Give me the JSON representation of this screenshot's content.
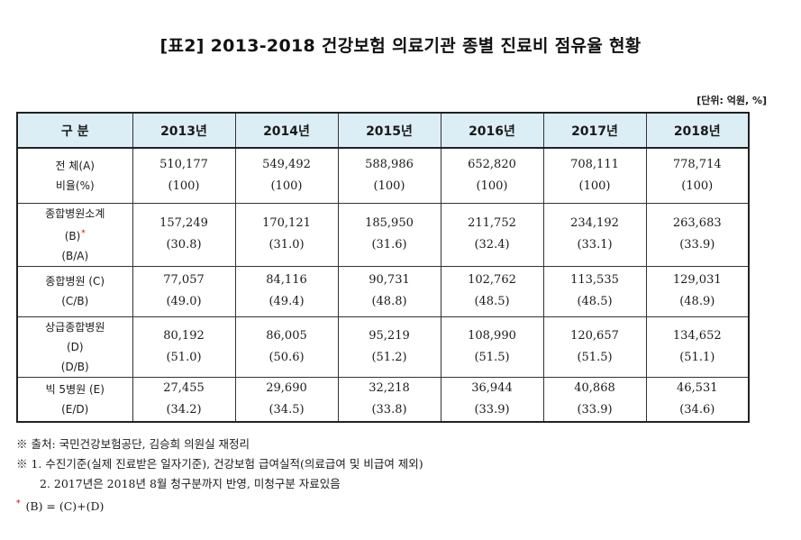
{
  "title": "[표2] 2013-2018 건강보험 의료기관 종별 진료비 점유율 현황",
  "unit": "[단위: 억원, %]",
  "chart_data": {
    "type": "table",
    "title": "[표2] 2013-2018 건강보험 의료기관 종별 진료비 점유율 현황",
    "unit": "[단위: 억원, %]",
    "header": [
      "구 분",
      "2013년",
      "2014년",
      "2015년",
      "2016년",
      "2017년",
      "2018년"
    ],
    "rows": [
      {
        "label_lines": [
          "전 체(A)",
          "비율(%)"
        ],
        "label_mark": "",
        "values": [
          "510,177",
          "549,492",
          "588,986",
          "652,820",
          "708,111",
          "778,714"
        ],
        "ratios": [
          "(100)",
          "(100)",
          "(100)",
          "(100)",
          "(100)",
          "(100)"
        ]
      },
      {
        "label_lines": [
          "종합병원소계",
          "(B)",
          "(B/A)"
        ],
        "label_mark": "*",
        "values": [
          "157,249",
          "170,121",
          "185,950",
          "211,752",
          "234,192",
          "263,683"
        ],
        "ratios": [
          "(30.8)",
          "(31.0)",
          "(31.6)",
          "(32.4)",
          "(33.1)",
          "(33.9)"
        ]
      },
      {
        "label_lines": [
          "종합병원 (C)",
          "(C/B)"
        ],
        "label_mark": "",
        "values": [
          "77,057",
          "84,116",
          "90,731",
          "102,762",
          "113,535",
          "129,031"
        ],
        "ratios": [
          "(49.0)",
          "(49.4)",
          "(48.8)",
          "(48.5)",
          "(48.5)",
          "(48.9)"
        ]
      },
      {
        "label_lines": [
          "상급종합병원",
          "(D)",
          "(D/B)"
        ],
        "label_mark": "",
        "values": [
          "80,192",
          "86,005",
          "95,219",
          "108,990",
          "120,657",
          "134,652"
        ],
        "ratios": [
          "(51.0)",
          "(50.6)",
          "(51.2)",
          "(51.5)",
          "(51.5)",
          "(51.1)"
        ]
      },
      {
        "label_lines": [
          "빅 5병원 (E)",
          "(E/D)"
        ],
        "label_mark": "",
        "values": [
          "27,455",
          "29,690",
          "32,218",
          "36,944",
          "40,868",
          "46,531"
        ],
        "ratios": [
          "(34.2)",
          "(34.5)",
          "(33.8)",
          "(33.9)",
          "(33.9)",
          "(34.6)"
        ]
      }
    ]
  },
  "notes": {
    "source": "※ 출처: 국민건강보험공단, 김승희 의원실 재정리",
    "note1": "※ 1. 수진기준(실제 진료받은 일자기준), 건강보험 급여실적(의료급여 및 비급여 제외)",
    "note2": "2. 2017년은 2018년 8월 청구분까지 반영, 미청구분 자료있음",
    "footnote_mark": "*",
    "footnote": "(B) = (C)+(D)"
  },
  "colors": {
    "header_bg": "#dceef5",
    "mark_red": "#d00000",
    "border": "#222222"
  }
}
